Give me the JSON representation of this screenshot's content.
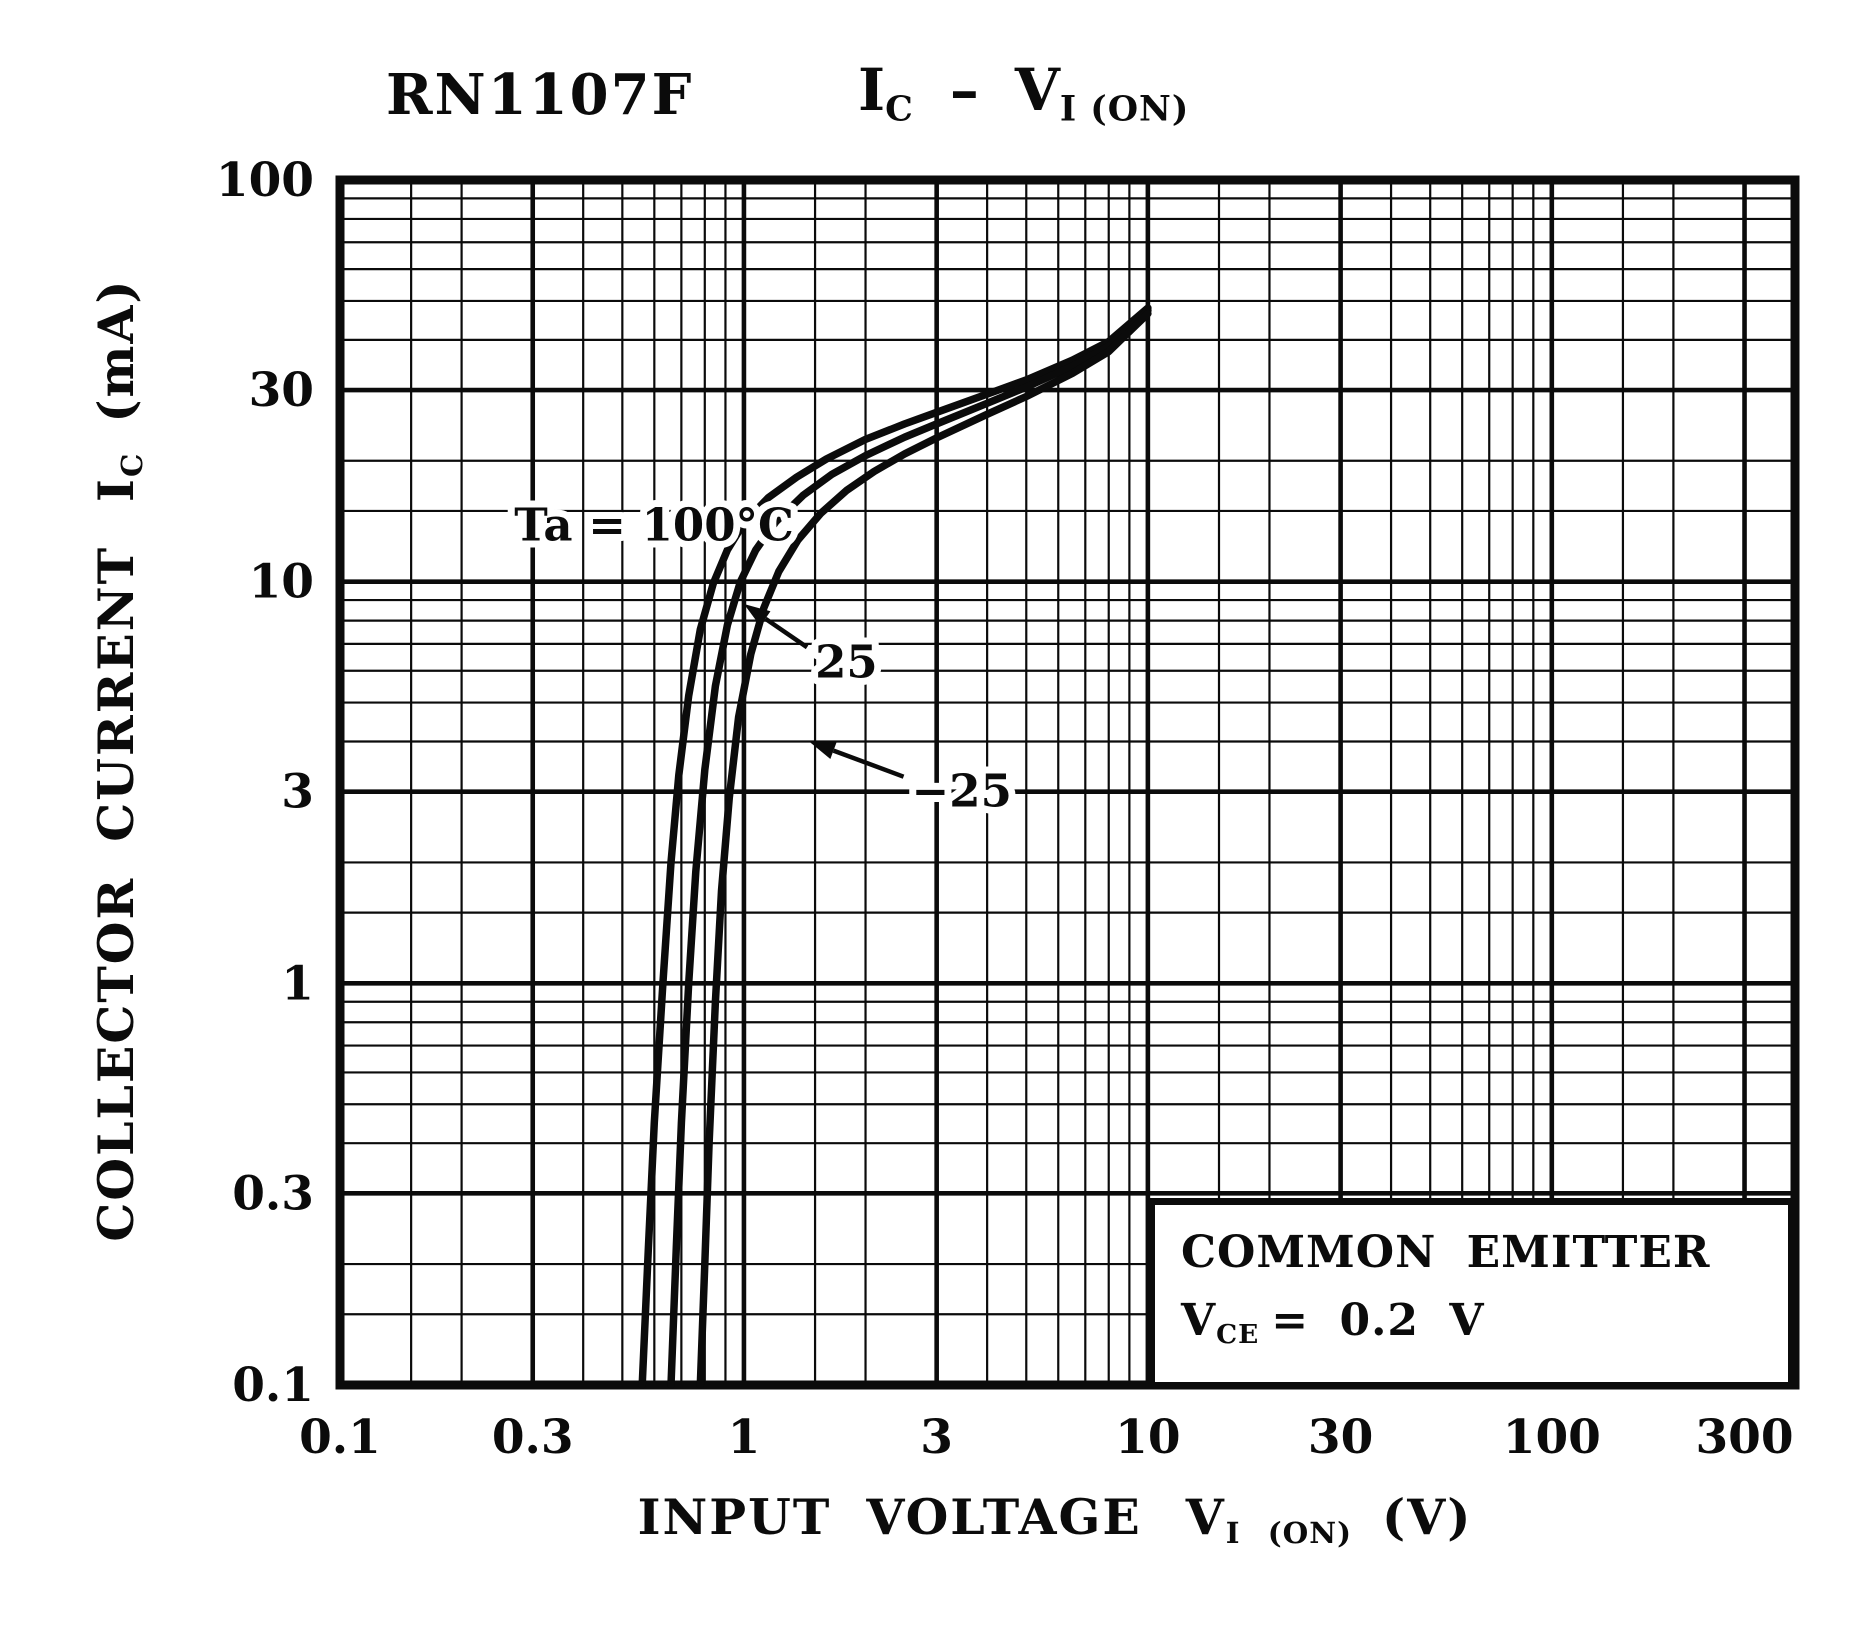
{
  "title": {
    "device": "RN1107F",
    "y_sym": "I",
    "y_sub": "C",
    "dash": "–",
    "x_sym": "V",
    "x_sub": "I (ON)"
  },
  "y_axis_label": {
    "words": "COLLECTOR CURRENT",
    "sym": "I",
    "sub": "C",
    "unit": "(mA)"
  },
  "x_axis_label": {
    "words": "INPUT VOLTAGE",
    "sym": "V",
    "sub": "I (ON)",
    "unit": "(V)"
  },
  "condition_box": {
    "line1": "COMMON EMITTER",
    "sym": "V",
    "sub": "CE",
    "rest": "= 0.2 V"
  },
  "chart_data": {
    "type": "line",
    "title": "RN1107F  IC – VI(ON)",
    "xlabel": "INPUT VOLTAGE VI(ON) (V)",
    "ylabel": "COLLECTOR CURRENT IC (mA)",
    "x_axis": {
      "scale": "log",
      "min": 0.1,
      "max": 400,
      "ticks": [
        0.1,
        0.3,
        1,
        3,
        10,
        30,
        100,
        300
      ]
    },
    "y_axis": {
      "scale": "log",
      "min": 0.1,
      "max": 100,
      "ticks": [
        0.1,
        0.3,
        1,
        3,
        10,
        30,
        100
      ]
    },
    "grid": {
      "major_mantissas": [
        1,
        3
      ],
      "minor_mantissas": [
        1.5,
        2,
        4,
        5,
        6,
        7,
        8,
        9
      ]
    },
    "series": [
      {
        "name": "Ta = 100°C",
        "points": [
          [
            0.56,
            0.1
          ],
          [
            0.58,
            0.22
          ],
          [
            0.6,
            0.45
          ],
          [
            0.63,
            1.0
          ],
          [
            0.66,
            2.0
          ],
          [
            0.69,
            3.3
          ],
          [
            0.73,
            5.2
          ],
          [
            0.78,
            7.6
          ],
          [
            0.84,
            9.9
          ],
          [
            0.91,
            12.0
          ],
          [
            1.0,
            14.0
          ],
          [
            1.15,
            16.2
          ],
          [
            1.35,
            18.2
          ],
          [
            1.6,
            20.2
          ],
          [
            2.0,
            22.6
          ],
          [
            2.5,
            24.7
          ],
          [
            3.0,
            26.4
          ],
          [
            4.0,
            29.3
          ],
          [
            5.0,
            31.8
          ],
          [
            6.5,
            35.6
          ],
          [
            8.0,
            39.6
          ],
          [
            10.0,
            48.0
          ]
        ]
      },
      {
        "name": "Ta = 25°C",
        "points": [
          [
            0.66,
            0.1
          ],
          [
            0.68,
            0.22
          ],
          [
            0.7,
            0.45
          ],
          [
            0.73,
            1.0
          ],
          [
            0.76,
            1.9
          ],
          [
            0.8,
            3.4
          ],
          [
            0.85,
            5.5
          ],
          [
            0.91,
            7.8
          ],
          [
            0.98,
            10.0
          ],
          [
            1.07,
            12.0
          ],
          [
            1.2,
            14.1
          ],
          [
            1.4,
            16.4
          ],
          [
            1.65,
            18.5
          ],
          [
            2.0,
            20.6
          ],
          [
            2.5,
            22.9
          ],
          [
            3.0,
            24.7
          ],
          [
            4.0,
            27.8
          ],
          [
            5.0,
            30.5
          ],
          [
            6.5,
            34.4
          ],
          [
            8.0,
            38.6
          ],
          [
            10.0,
            47.3
          ]
        ]
      },
      {
        "name": "Ta = −25°C",
        "points": [
          [
            0.78,
            0.1
          ],
          [
            0.8,
            0.2
          ],
          [
            0.82,
            0.4
          ],
          [
            0.85,
            0.9
          ],
          [
            0.88,
            1.7
          ],
          [
            0.92,
            2.9
          ],
          [
            0.97,
            4.6
          ],
          [
            1.04,
            6.6
          ],
          [
            1.12,
            8.6
          ],
          [
            1.22,
            10.6
          ],
          [
            1.36,
            12.7
          ],
          [
            1.55,
            14.8
          ],
          [
            1.8,
            16.9
          ],
          [
            2.1,
            18.8
          ],
          [
            2.5,
            20.8
          ],
          [
            3.0,
            22.8
          ],
          [
            4.0,
            26.1
          ],
          [
            5.0,
            28.9
          ],
          [
            6.5,
            33.0
          ],
          [
            8.0,
            37.4
          ],
          [
            10.0,
            46.5
          ]
        ]
      }
    ],
    "annotations": [
      {
        "text": "Ta = 100°C",
        "x": 0.27,
        "y": 13.8,
        "anchor": "start"
      },
      {
        "text": "25",
        "x": 1.5,
        "y": 6.3,
        "anchor": "start",
        "arrow_to": {
          "x": 1.0,
          "y": 8.8
        }
      },
      {
        "text": "−25",
        "x": 2.6,
        "y": 3.0,
        "anchor": "start",
        "arrow_to": {
          "x": 1.45,
          "y": 4.0
        }
      }
    ],
    "conditions": [
      "COMMON EMITTER",
      "VCE = 0.2 V"
    ]
  }
}
